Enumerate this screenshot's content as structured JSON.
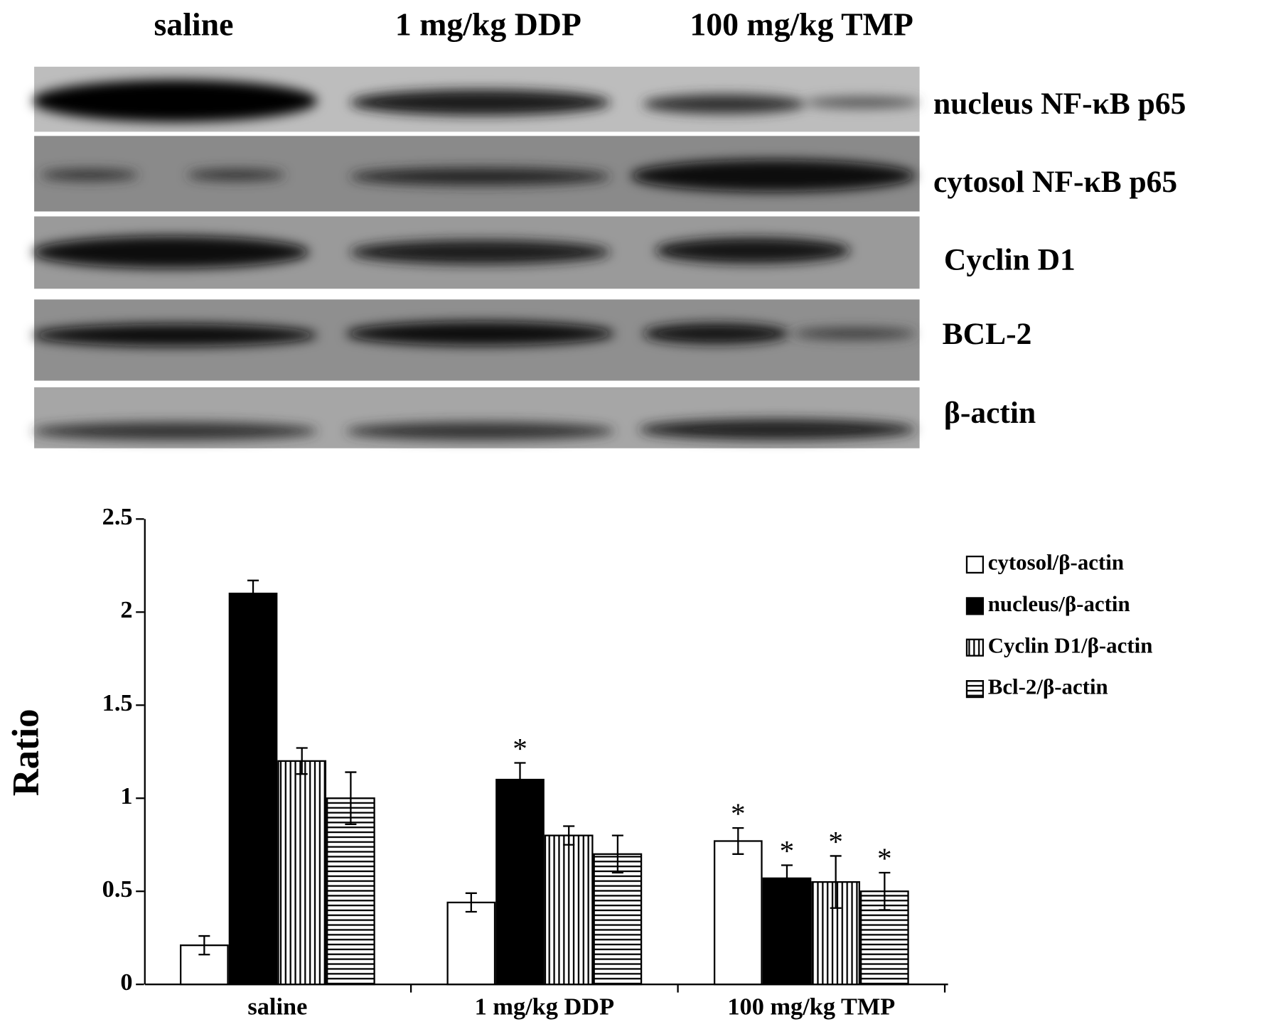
{
  "blot": {
    "columns": [
      "saline",
      "1 mg/kg DDP",
      "100 mg/kg TMP"
    ],
    "rows": [
      "nucleus NF-κB p65",
      "cytosol NF-κB p65",
      "Cyclin D1",
      "BCL-2",
      "β-actin"
    ]
  },
  "chart_data": {
    "type": "bar",
    "ylabel": "Ratio",
    "categories": [
      "saline",
      "1 mg/kg DDP",
      "100 mg/kg TMP"
    ],
    "ylim": [
      0,
      2.5
    ],
    "yticks": [
      0,
      0.5,
      1,
      1.5,
      2,
      2.5
    ],
    "series": [
      {
        "name": "cytosol/β-actin",
        "color": "#000000",
        "pattern": "none",
        "values": [
          0.21,
          0.44,
          0.77
        ],
        "errors": [
          0.05,
          0.05,
          0.07
        ],
        "significance": [
          null,
          null,
          "*"
        ]
      },
      {
        "name": "nucleus/β-actin",
        "color": "#000000",
        "pattern": "solid",
        "values": [
          2.1,
          1.1,
          0.57
        ],
        "errors": [
          0.07,
          0.09,
          0.07
        ],
        "significance": [
          null,
          "*",
          "*"
        ]
      },
      {
        "name": "Cyclin D1/β-actin",
        "color": "#000000",
        "pattern": "vertical",
        "values": [
          1.2,
          0.8,
          0.55
        ],
        "errors": [
          0.07,
          0.05,
          0.14
        ],
        "significance": [
          null,
          null,
          "*"
        ]
      },
      {
        "name": "Bcl-2/β-actin",
        "color": "#000000",
        "pattern": "horizontal",
        "values": [
          1.0,
          0.7,
          0.5
        ],
        "errors": [
          0.14,
          0.1,
          0.1
        ],
        "significance": [
          null,
          null,
          "*"
        ]
      }
    ]
  }
}
